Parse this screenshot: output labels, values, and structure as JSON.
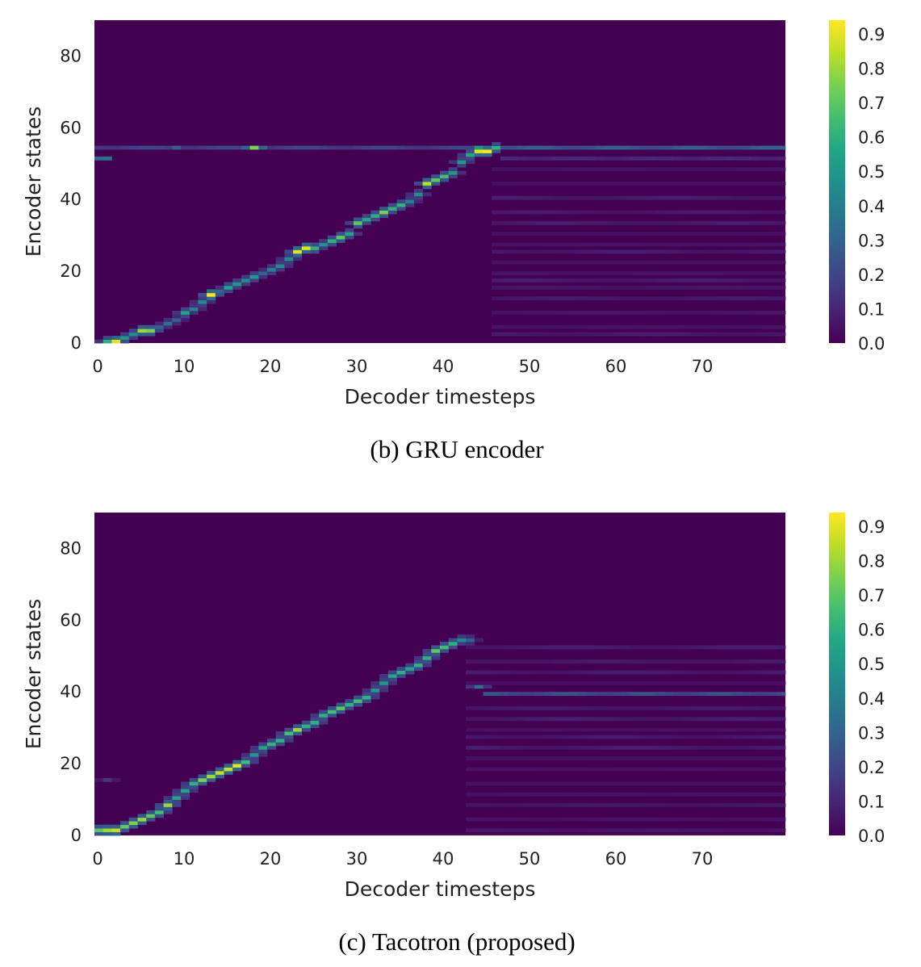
{
  "chart_data": [
    {
      "type": "heatmap",
      "caption": "(b) GRU encoder",
      "title": "",
      "xlabel": "Decoder timesteps",
      "ylabel": "Encoder states",
      "xlim": [
        0,
        80
      ],
      "ylim": [
        0,
        90
      ],
      "xticks": [
        0,
        10,
        20,
        30,
        40,
        50,
        60,
        70
      ],
      "yticks": [
        0,
        20,
        40,
        60,
        80
      ],
      "colorbar": {
        "min": 0.0,
        "max": 0.94,
        "ticks": [
          "0.0",
          "0.1",
          "0.2",
          "0.3",
          "0.4",
          "0.5",
          "0.6",
          "0.7",
          "0.8",
          "0.9"
        ],
        "colormap": "viridis"
      },
      "alignment_path": [
        [
          1,
          0,
          0.6
        ],
        [
          2,
          0,
          0.9
        ],
        [
          3,
          1,
          0.5
        ],
        [
          4,
          2,
          0.45
        ],
        [
          5,
          3,
          0.8
        ],
        [
          6,
          3,
          0.75
        ],
        [
          7,
          4,
          0.3
        ],
        [
          8,
          5,
          0.35
        ],
        [
          9,
          6,
          0.3
        ],
        [
          10,
          8,
          0.55
        ],
        [
          11,
          9,
          0.4
        ],
        [
          12,
          11,
          0.45
        ],
        [
          13,
          13,
          0.95
        ],
        [
          14,
          14,
          0.3
        ],
        [
          15,
          15,
          0.55
        ],
        [
          16,
          16,
          0.5
        ],
        [
          17,
          17,
          0.45
        ],
        [
          18,
          18,
          0.5
        ],
        [
          19,
          19,
          0.3
        ],
        [
          20,
          20,
          0.4
        ],
        [
          21,
          21,
          0.45
        ],
        [
          22,
          23,
          0.45
        ],
        [
          23,
          25,
          0.9
        ],
        [
          24,
          26,
          0.9
        ],
        [
          25,
          26,
          0.6
        ],
        [
          26,
          27,
          0.45
        ],
        [
          27,
          28,
          0.6
        ],
        [
          28,
          29,
          0.7
        ],
        [
          29,
          30,
          0.55
        ],
        [
          30,
          33,
          0.7
        ],
        [
          31,
          34,
          0.55
        ],
        [
          32,
          35,
          0.6
        ],
        [
          33,
          36,
          0.75
        ],
        [
          34,
          37,
          0.6
        ],
        [
          35,
          38,
          0.6
        ],
        [
          36,
          39,
          0.4
        ],
        [
          37,
          41,
          0.45
        ],
        [
          38,
          44,
          0.85
        ],
        [
          39,
          45,
          0.7
        ],
        [
          40,
          46,
          0.65
        ],
        [
          41,
          47,
          0.5
        ],
        [
          42,
          50,
          0.5
        ],
        [
          43,
          52,
          0.55
        ],
        [
          44,
          53,
          0.9
        ],
        [
          45,
          53,
          0.95
        ],
        [
          46,
          54,
          0.6
        ]
      ],
      "static_rows": [
        {
          "y": 54,
          "x_from": 0,
          "x_to": 46,
          "intensity": 0.2
        },
        {
          "y": 54,
          "x_from": 46,
          "x_to": 80,
          "intensity": 0.3
        },
        {
          "y": 51,
          "x_from": 0,
          "x_to": 2,
          "intensity": 0.35
        },
        {
          "y": 51,
          "x_from": 47,
          "x_to": 80,
          "intensity": 0.12
        }
      ],
      "hotspots": [
        [
          18,
          54,
          0.75
        ],
        [
          44,
          54,
          0.5
        ],
        [
          9,
          54,
          0.3
        ]
      ],
      "noise_start": 46,
      "noise_rows": [
        2,
        4,
        8,
        12,
        15,
        17,
        19,
        22,
        25,
        27,
        30,
        33,
        36,
        40,
        44,
        48
      ]
    },
    {
      "type": "heatmap",
      "caption": "(c) Tacotron (proposed)",
      "title": "",
      "xlabel": "Decoder timesteps",
      "ylabel": "Encoder states",
      "xlim": [
        0,
        80
      ],
      "ylim": [
        0,
        90
      ],
      "xticks": [
        0,
        10,
        20,
        30,
        40,
        50,
        60,
        70
      ],
      "yticks": [
        0,
        20,
        40,
        60,
        80
      ],
      "colorbar": {
        "min": 0.0,
        "max": 0.94,
        "ticks": [
          "0.0",
          "0.1",
          "0.2",
          "0.3",
          "0.4",
          "0.5",
          "0.6",
          "0.7",
          "0.8",
          "0.9"
        ],
        "colormap": "viridis"
      },
      "alignment_path": [
        [
          0,
          1,
          0.7
        ],
        [
          1,
          1,
          0.8
        ],
        [
          2,
          1,
          0.85
        ],
        [
          3,
          2,
          0.7
        ],
        [
          4,
          3,
          0.75
        ],
        [
          5,
          4,
          0.8
        ],
        [
          6,
          5,
          0.7
        ],
        [
          7,
          6,
          0.65
        ],
        [
          8,
          8,
          0.8
        ],
        [
          9,
          10,
          0.55
        ],
        [
          10,
          12,
          0.55
        ],
        [
          11,
          14,
          0.6
        ],
        [
          12,
          15,
          0.75
        ],
        [
          13,
          16,
          0.8
        ],
        [
          14,
          17,
          0.85
        ],
        [
          15,
          18,
          0.85
        ],
        [
          16,
          19,
          0.9
        ],
        [
          17,
          20,
          0.65
        ],
        [
          18,
          22,
          0.5
        ],
        [
          19,
          24,
          0.55
        ],
        [
          20,
          25,
          0.6
        ],
        [
          21,
          26,
          0.6
        ],
        [
          22,
          28,
          0.65
        ],
        [
          23,
          29,
          0.8
        ],
        [
          24,
          30,
          0.6
        ],
        [
          25,
          31,
          0.6
        ],
        [
          26,
          33,
          0.6
        ],
        [
          27,
          34,
          0.65
        ],
        [
          28,
          35,
          0.7
        ],
        [
          29,
          36,
          0.6
        ],
        [
          30,
          37,
          0.65
        ],
        [
          31,
          38,
          0.6
        ],
        [
          32,
          40,
          0.5
        ],
        [
          33,
          42,
          0.5
        ],
        [
          34,
          44,
          0.55
        ],
        [
          35,
          45,
          0.6
        ],
        [
          36,
          46,
          0.55
        ],
        [
          37,
          47,
          0.6
        ],
        [
          38,
          49,
          0.6
        ],
        [
          39,
          51,
          0.7
        ],
        [
          40,
          52,
          0.65
        ],
        [
          41,
          53,
          0.6
        ],
        [
          42,
          54,
          0.45
        ],
        [
          43,
          54,
          0.3
        ]
      ],
      "static_rows": [
        {
          "y": 39,
          "x_from": 45,
          "x_to": 80,
          "intensity": 0.25
        }
      ],
      "hotspots": [
        [
          44,
          41,
          0.35
        ],
        [
          1,
          15,
          0.15
        ]
      ],
      "noise_start": 43,
      "noise_rows": [
        1,
        4,
        8,
        11,
        14,
        18,
        21,
        24,
        27,
        29,
        32,
        35,
        42,
        45,
        48,
        52
      ]
    }
  ]
}
